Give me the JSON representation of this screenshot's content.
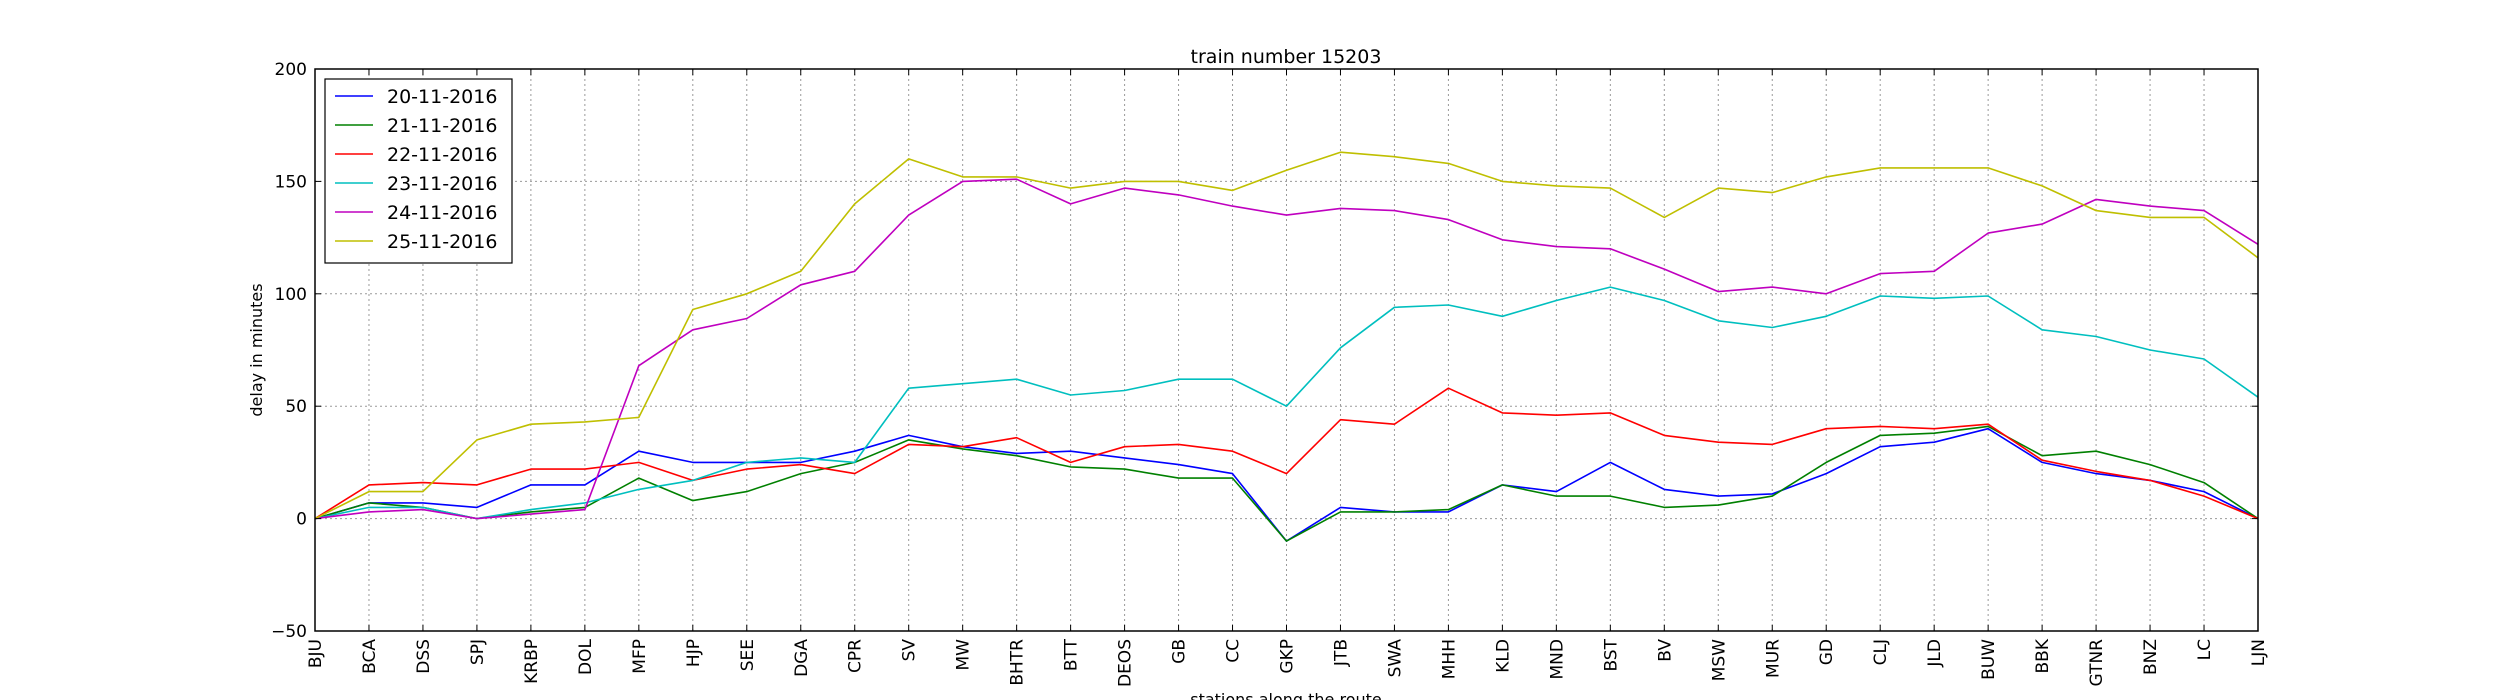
{
  "chart_data": {
    "type": "line",
    "title": "train number 15203",
    "xlabel": "stations along the route",
    "ylabel": "delay in minutes",
    "ylim": [
      -50,
      200
    ],
    "yticks": [
      -50,
      0,
      50,
      100,
      150,
      200
    ],
    "grid": true,
    "legend_position": "top-left",
    "categories": [
      "BJU",
      "BCA",
      "DSS",
      "SPJ",
      "KRBP",
      "DOL",
      "MFP",
      "HJP",
      "SEE",
      "DGA",
      "CPR",
      "SV",
      "MW",
      "BHTR",
      "BTT",
      "DEOS",
      "GB",
      "CC",
      "GKP",
      "JTB",
      "SWA",
      "MHH",
      "KLD",
      "MND",
      "BST",
      "BV",
      "MSW",
      "MUR",
      "GD",
      "CLJ",
      "JLD",
      "BUW",
      "BBK",
      "GTNR",
      "BNZ",
      "LC",
      "LJN"
    ],
    "series": [
      {
        "name": "20-11-2016",
        "color": "#0000ff",
        "values": [
          0,
          7,
          7,
          5,
          15,
          15,
          30,
          25,
          25,
          25,
          30,
          37,
          32,
          29,
          30,
          27,
          24,
          20,
          -10,
          5,
          3,
          3,
          15,
          12,
          25,
          13,
          10,
          11,
          20,
          32,
          34,
          40,
          25,
          20,
          17,
          12,
          0
        ]
      },
      {
        "name": "21-11-2016",
        "color": "#008000",
        "values": [
          0,
          7,
          5,
          0,
          3,
          5,
          18,
          8,
          12,
          20,
          25,
          35,
          31,
          28,
          23,
          22,
          18,
          18,
          -10,
          3,
          3,
          4,
          15,
          10,
          10,
          5,
          6,
          10,
          25,
          37,
          38,
          41,
          28,
          30,
          24,
          16,
          0
        ]
      },
      {
        "name": "22-11-2016",
        "color": "#ff0000",
        "values": [
          0,
          15,
          16,
          15,
          22,
          22,
          25,
          17,
          22,
          24,
          20,
          33,
          32,
          36,
          25,
          32,
          33,
          30,
          20,
          44,
          42,
          58,
          47,
          46,
          47,
          37,
          34,
          33,
          40,
          41,
          40,
          42,
          26,
          21,
          17,
          10,
          0
        ]
      },
      {
        "name": "23-11-2016",
        "color": "#00bfbf",
        "values": [
          0,
          5,
          5,
          0,
          4,
          7,
          13,
          17,
          25,
          27,
          25,
          58,
          60,
          62,
          55,
          57,
          62,
          62,
          50,
          76,
          94,
          95,
          90,
          97,
          103,
          97,
          88,
          85,
          90,
          99,
          98,
          99,
          84,
          81,
          75,
          71,
          54
        ]
      },
      {
        "name": "24-11-2016",
        "color": "#bf00bf",
        "values": [
          0,
          3,
          4,
          0,
          2,
          4,
          68,
          84,
          89,
          104,
          110,
          135,
          150,
          151,
          140,
          147,
          144,
          139,
          135,
          138,
          137,
          133,
          124,
          121,
          120,
          111,
          101,
          103,
          100,
          109,
          110,
          127,
          131,
          142,
          139,
          137,
          122
        ]
      },
      {
        "name": "25-11-2016",
        "color": "#bfbf00",
        "values": [
          0,
          12,
          12,
          35,
          42,
          43,
          45,
          93,
          100,
          110,
          140,
          160,
          152,
          152,
          147,
          150,
          150,
          146,
          155,
          163,
          161,
          158,
          150,
          148,
          147,
          134,
          147,
          145,
          152,
          156,
          156,
          156,
          148,
          137,
          134,
          134,
          116
        ]
      }
    ]
  }
}
